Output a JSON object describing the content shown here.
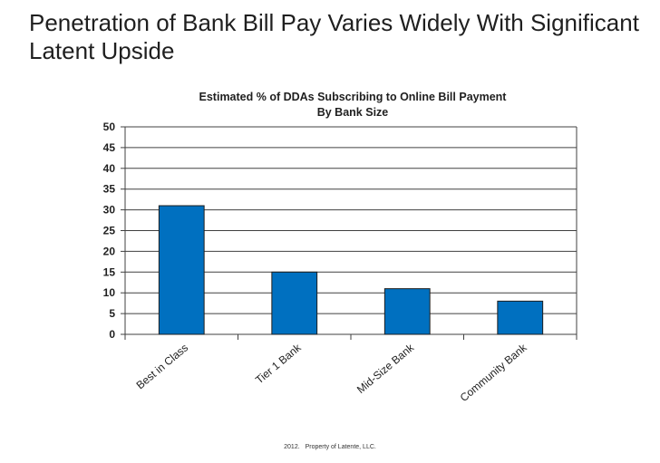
{
  "slide": {
    "title": "Penetration of Bank Bill Pay Varies Widely With Significant Latent Upside",
    "footer_year": "2012.",
    "footer_owner": "Property of Latente, LLC."
  },
  "colors": {
    "bar": "#0070c0",
    "bar_stroke": "#1f1f1f",
    "grid": "#404040",
    "text": "#1f1f1f"
  },
  "chart_data": {
    "type": "bar",
    "title": "Estimated % of DDAs Subscribing to Online Bill Payment",
    "subtitle": "By Bank Size",
    "categories": [
      "Best in Class",
      "Tier 1 Bank",
      "Mid-Size Bank",
      "Community Bank"
    ],
    "values": [
      31,
      15,
      11,
      8
    ],
    "ylim": [
      0,
      50
    ],
    "yticks": [
      0,
      5,
      10,
      15,
      20,
      25,
      30,
      35,
      40,
      45,
      50
    ],
    "grid": true,
    "legend": "none"
  }
}
